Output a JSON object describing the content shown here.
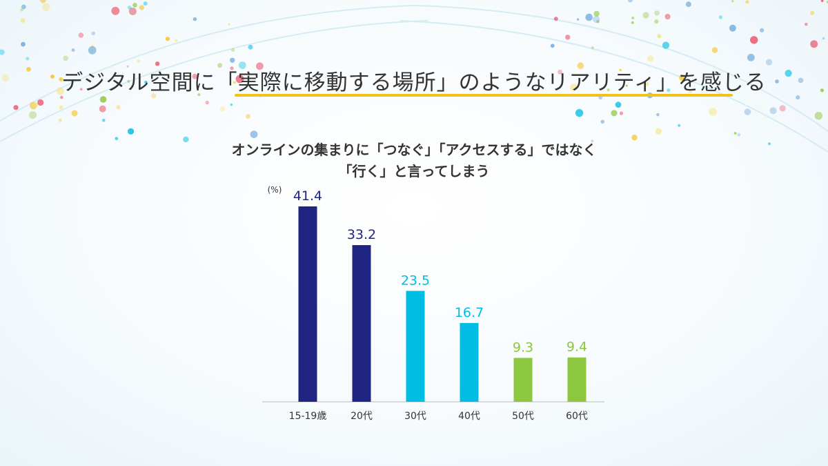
{
  "headline": "デジタル空間に「実際に移動する場所」のようなリアリティ」を感じる",
  "colors": {
    "dark_navy": "#1f2580",
    "cyan": "#00bde3",
    "green": "#8dc63f",
    "accent_underline": "#f2c21b",
    "text": "#333333"
  },
  "chart_data": {
    "type": "bar",
    "title_line1": "オンラインの集まりに「つなぐ」「アクセスする」ではなく",
    "title_line2": "「行く」と言ってしまう",
    "unit_label": "(%)",
    "categories": [
      "15-19歳",
      "20代",
      "30代",
      "40代",
      "50代",
      "60代"
    ],
    "values": [
      41.4,
      33.2,
      23.5,
      16.7,
      9.3,
      9.4
    ],
    "value_labels": [
      "41.4",
      "33.2",
      "23.5",
      "16.7",
      "9.3",
      "9.4"
    ],
    "bar_colors": [
      "#1f2580",
      "#1f2580",
      "#00bde3",
      "#00bde3",
      "#8dc63f",
      "#8dc63f"
    ],
    "ylim": [
      0,
      41.4
    ],
    "grid": false,
    "legend": "none"
  }
}
